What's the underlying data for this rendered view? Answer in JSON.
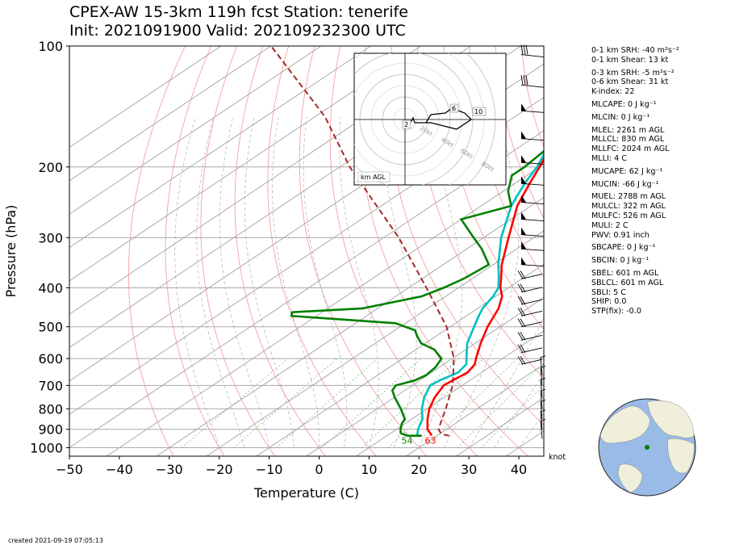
{
  "title": {
    "line1": "CPEX-AW 15-3km  119h fcst  Station: tenerife",
    "line2": "Init: 2021091900  Valid: 202109232300 UTC"
  },
  "chart_data": {
    "type": "line",
    "subtype": "skew-t log-p",
    "xlabel": "Temperature (C)",
    "ylabel": "Pressure (hPa)",
    "xlim": [
      -50,
      45
    ],
    "ylim": [
      1050,
      100
    ],
    "yscale": "log",
    "xticks": [
      -50,
      -40,
      -30,
      -20,
      -10,
      0,
      10,
      20,
      30,
      40
    ],
    "yticks": [
      100,
      200,
      300,
      400,
      500,
      600,
      700,
      800,
      900,
      1000
    ],
    "wind_unit": "knot",
    "series": [
      {
        "role": "temperature",
        "color": "#ff0000",
        "p": [
          934,
          925,
          900,
          850,
          800,
          750,
          700,
          680,
          650,
          620,
          600,
          550,
          500,
          450,
          420,
          400,
          370,
          350,
          300,
          250,
          220,
          200,
          180,
          160,
          140,
          120,
          100
        ],
        "t": [
          18.9,
          18.3,
          16.2,
          13.2,
          10.4,
          8.1,
          6.3,
          6.6,
          7.2,
          6.2,
          4.7,
          1.1,
          -2.5,
          -5.8,
          -8.7,
          -11.6,
          -15.5,
          -18.3,
          -25.0,
          -32.8,
          -37.0,
          -40.0,
          -43.5,
          -48.5,
          -53.0,
          -58.0,
          -62.0
        ]
      },
      {
        "role": "dewpoint",
        "color": "#00bfbf",
        "p": [
          934,
          925,
          900,
          850,
          800,
          750,
          700,
          680,
          650,
          620,
          600,
          550,
          500,
          470,
          450,
          420,
          400,
          370,
          350,
          300,
          250,
          220,
          200,
          180,
          160,
          140,
          120,
          100
        ],
        "t": [
          16.2,
          15.6,
          14.3,
          12.2,
          8.9,
          6.0,
          3.6,
          4.0,
          5.3,
          4.5,
          2.8,
          -1.6,
          -5.2,
          -7.5,
          -9.0,
          -10.5,
          -12.0,
          -16.0,
          -19.0,
          -26.5,
          -34.0,
          -38.0,
          -40.5,
          -44.0,
          -49.0,
          -54.0,
          -59.0,
          -63.0
        ]
      },
      {
        "role": "parcel",
        "color": "#a52a2a",
        "p": [
          934,
          925,
          900,
          850,
          800,
          700,
          600,
          500,
          400,
          300,
          200,
          150,
          100
        ],
        "t": [
          22.5,
          20.4,
          18.4,
          16.1,
          13.7,
          8.1,
          0.3,
          -10.7,
          -26.4,
          -47.0,
          -78.0,
          -98.0,
          -130.0
        ]
      },
      {
        "role": "wet-bulb",
        "color": "#008000",
        "p": [
          934,
          930,
          920,
          900,
          870,
          850,
          800,
          780,
          750,
          720,
          700,
          680,
          660,
          630,
          600,
          570,
          550,
          530,
          510,
          490,
          470,
          460,
          450,
          420,
          400,
          380,
          350,
          320,
          300,
          270,
          250,
          230,
          210,
          200,
          180,
          150,
          140,
          120,
          110,
          100
        ],
        "t": [
          14.2,
          13.5,
          12.0,
          10.8,
          9.3,
          8.7,
          4.7,
          2.9,
          0.1,
          -2.5,
          -3.3,
          -1.0,
          -0.3,
          -0.8,
          -2.2,
          -6.3,
          -10.8,
          -13.5,
          -16.0,
          -22.0,
          -45.0,
          -46.0,
          -33.0,
          -24.8,
          -23.0,
          -21.7,
          -20.9,
          -27.0,
          -32.0,
          -40.0,
          -34.0,
          -39.0,
          -43.0,
          -43.0,
          -44.0,
          -44.5,
          -44.5,
          -46.0,
          -46.5,
          -44.5
        ]
      }
    ],
    "annotations": [
      {
        "text": "54",
        "color": "#008000",
        "x_c": 14.2,
        "p": 960
      },
      {
        "text": "63",
        "color": "#ff0000",
        "x_c": 18.9,
        "p": 960
      }
    ],
    "hodograph": {
      "label": "km AGL",
      "ring_labels": [
        "20kt",
        "40kt",
        "60kt",
        "80kt"
      ],
      "height_labels": [
        "2",
        "6",
        "10"
      ]
    }
  },
  "stats": {
    "srh1": "0-1 km SRH: -40 m²s⁻²",
    "shear1": "0-1 km Shear: 13 kt",
    "srh3": "0-3 km SRH: -5 m²s⁻²",
    "shear6": "0-6 km Shear: 31 kt",
    "kindex": "K-index: 22",
    "mlcape": "MLCAPE: 0 J kg⁻¹",
    "mlcin": "MLCIN: 0 J kg⁻¹",
    "mlel": "MLEL: 2261 m AGL",
    "mllcl": "MLLCL: 830 m AGL",
    "mllfc": "MLLFC: 2024 m AGL",
    "mlli": "MLLI: 4 C",
    "mucape": "MUCAPE: 62 J kg⁻¹",
    "mucin": "MUCIN: -66 J kg⁻¹",
    "muel": "MUEL: 2788 m AGL",
    "mulcl": "MULCL: 322 m AGL",
    "mulfc": "MULFC: 526 m AGL",
    "muli": "MULI: 2 C",
    "pwv": "PWV: 0.91 inch",
    "sbcape": "SBCAPE: 0 J kg⁻¹",
    "sbcin": "SBCIN: 0 J kg⁻¹",
    "sbel": "SBEL: 601 m AGL",
    "sblcl": "SBLCL: 601 m AGL",
    "sbli": "SBLI: 5 C",
    "ship": "SHIP: 0.0",
    "stp": "STP(fix): -0.0"
  },
  "footer": "created 2021-09-19 07:05:13",
  "colors": {
    "temperature": "#ff0000",
    "dewpoint": "#00bfbf",
    "wetbulb": "#008000",
    "parcel": "#a52a2a",
    "ocean": "#99bbe6",
    "land": "#efefdc"
  }
}
